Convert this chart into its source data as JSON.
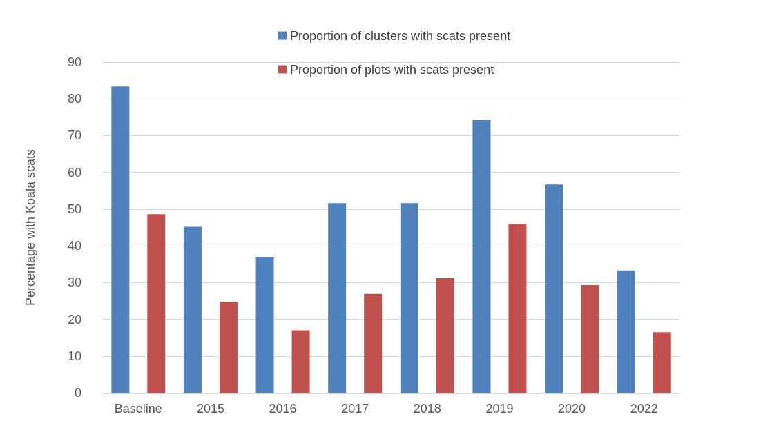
{
  "chart_data": {
    "type": "bar",
    "ylabel": "Percentage with Koala scats",
    "categories": [
      "Baseline",
      "2015",
      "2016",
      "2017",
      "2018",
      "2019",
      "2020",
      "2022"
    ],
    "series": [
      {
        "name": "Proportion of clusters with scats present",
        "color": "#4f81bd",
        "values": [
          83.4,
          45.2,
          37.0,
          51.6,
          51.6,
          74.2,
          56.7,
          33.3
        ]
      },
      {
        "name": "Proportion of plots with scats present",
        "color": "#c0504d",
        "values": [
          48.6,
          24.8,
          17.0,
          26.9,
          31.2,
          46.0,
          29.3,
          16.5
        ]
      }
    ],
    "ylim": [
      0,
      90
    ],
    "yticks": [
      0,
      10,
      20,
      30,
      40,
      50,
      60,
      70,
      80,
      90
    ],
    "grid": "y",
    "legend": "top"
  }
}
